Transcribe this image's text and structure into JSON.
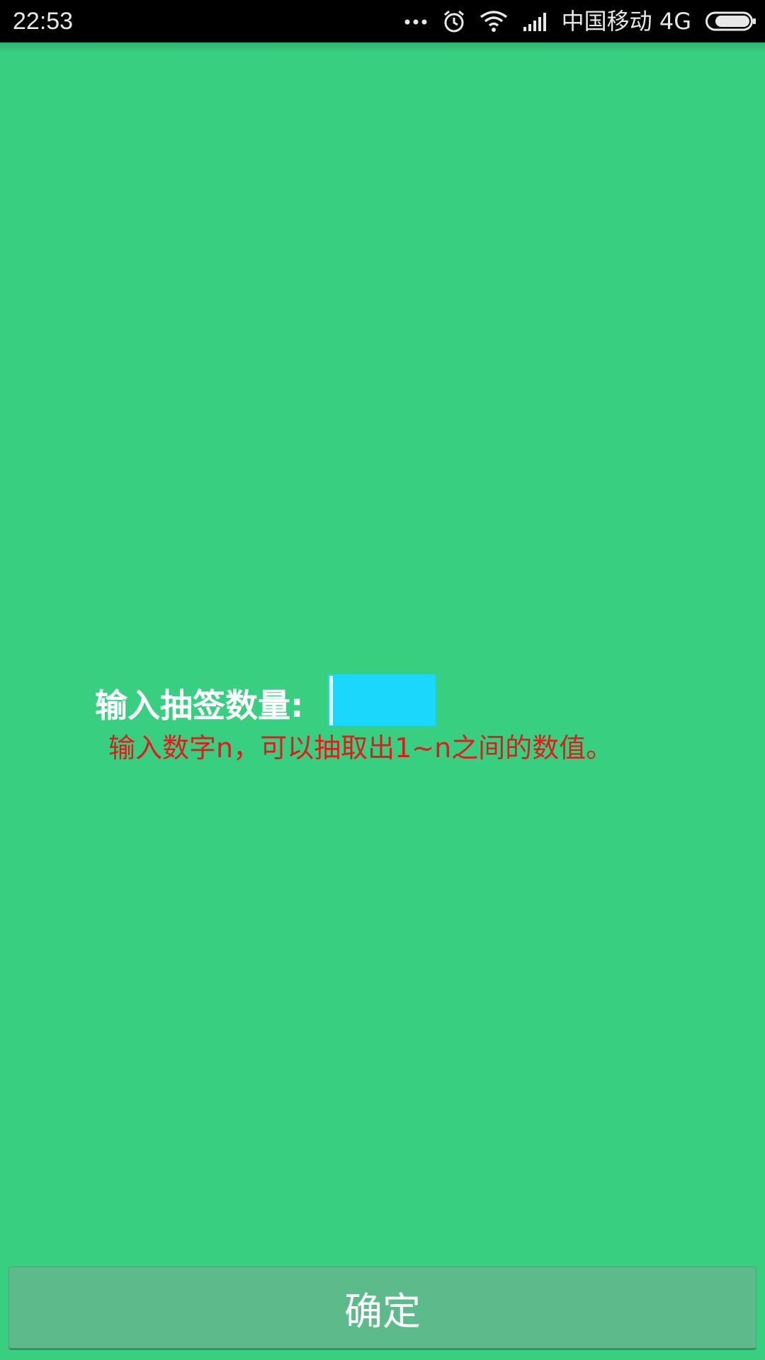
{
  "status_bar": {
    "time": "22:53",
    "carrier": "中国移动 4G",
    "icons": [
      "more-dots-icon",
      "alarm-icon",
      "wifi-icon",
      "signal-icon",
      "battery-icon"
    ]
  },
  "form": {
    "label": "输入抽签数量:",
    "input_value": "",
    "hint": "输入数字n，可以抽取出1~n之间的数值。"
  },
  "confirm_button": {
    "label": "确定"
  },
  "colors": {
    "background": "#39cf81",
    "input_bg": "#1ad7fb",
    "hint_text": "#e21a1a",
    "button_bg": "#5cba8b"
  }
}
